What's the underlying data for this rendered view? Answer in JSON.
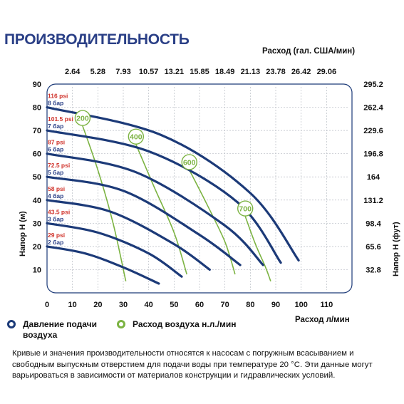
{
  "title": "ПРОИЗВОДИТЕЛЬНОСТЬ",
  "top_axis_title": "Расход (гал. США/мин)",
  "bottom_axis_title": "Расход л/мин",
  "left_axis_title": "Напор H (м)",
  "right_axis_title": "Напор H (фут)",
  "legend": {
    "pressure_label": "Давление подачи воздуха",
    "air_label": "Расход воздуха н.л./мин"
  },
  "colors": {
    "pressure": "#1c3a78",
    "air": "#7cb342",
    "psi_text": "#d0342c",
    "bar_text": "#2a3f86",
    "title": "#2a3f86"
  },
  "footnote": "Кривые и значения производительности относятся к насосам с погружным всасыванием и свободным выпускным отверстием для подачи воды при температуре 20 °С. Эти данные могут варьироваться в зависимости от материалов конструкции и гидравлических условий.",
  "chart_data": {
    "type": "line",
    "xlim": [
      0,
      120
    ],
    "ylim": [
      0,
      90
    ],
    "x_ticks": [
      "0",
      "10",
      "20",
      "30",
      "40",
      "50",
      "60",
      "70",
      "80",
      "90",
      "100",
      "110"
    ],
    "y_ticks": [
      "10",
      "20",
      "30",
      "40",
      "50",
      "60",
      "70",
      "80",
      "90"
    ],
    "top_ticks": [
      "2.64",
      "5.28",
      "7.93",
      "10.57",
      "13.21",
      "15.85",
      "18.49",
      "21.13",
      "23.78",
      "26.42",
      "29.06"
    ],
    "right_ticks": [
      "32.8",
      "65.6",
      "98.4",
      "131.2",
      "164",
      "196.8",
      "229.6",
      "262.4",
      "295.2"
    ],
    "series": [
      {
        "name": "2 бар",
        "psi": "29 psi",
        "x": [
          0,
          15,
          30,
          44
        ],
        "y": [
          20,
          17,
          11,
          4
        ]
      },
      {
        "name": "3 бар",
        "psi": "43.5 psi",
        "x": [
          0,
          20,
          40,
          53
        ],
        "y": [
          30,
          26,
          17,
          7
        ]
      },
      {
        "name": "4 бар",
        "psi": "58 psi",
        "x": [
          0,
          25,
          50,
          64
        ],
        "y": [
          40,
          35,
          21,
          10
        ]
      },
      {
        "name": "5 бар",
        "psi": "72.5 psi",
        "x": [
          0,
          30,
          60,
          76
        ],
        "y": [
          50,
          44,
          25,
          12
        ]
      },
      {
        "name": "6 бар",
        "psi": "87 psi",
        "x": [
          0,
          35,
          70,
          85
        ],
        "y": [
          60,
          52,
          29,
          12
        ]
      },
      {
        "name": "7 бар",
        "psi": "101.5 psi",
        "x": [
          0,
          40,
          75,
          92
        ],
        "y": [
          70,
          61,
          39,
          13
        ]
      },
      {
        "name": "8 бар",
        "psi": "116 psi",
        "x": [
          0,
          45,
          80,
          99
        ],
        "y": [
          80,
          68,
          43,
          14
        ]
      }
    ],
    "air_curves": [
      {
        "label": "200",
        "x": [
          14,
          20,
          26,
          31
        ],
        "y": [
          72,
          53,
          30,
          5
        ]
      },
      {
        "label": "400",
        "x": [
          35,
          42,
          50,
          55
        ],
        "y": [
          64,
          46,
          26,
          8
        ]
      },
      {
        "label": "600",
        "x": [
          56,
          63,
          70,
          74
        ],
        "y": [
          53,
          38,
          22,
          8
        ]
      },
      {
        "label": "700",
        "x": [
          78,
          82,
          86,
          88
        ],
        "y": [
          33,
          21,
          11,
          5
        ]
      }
    ]
  }
}
